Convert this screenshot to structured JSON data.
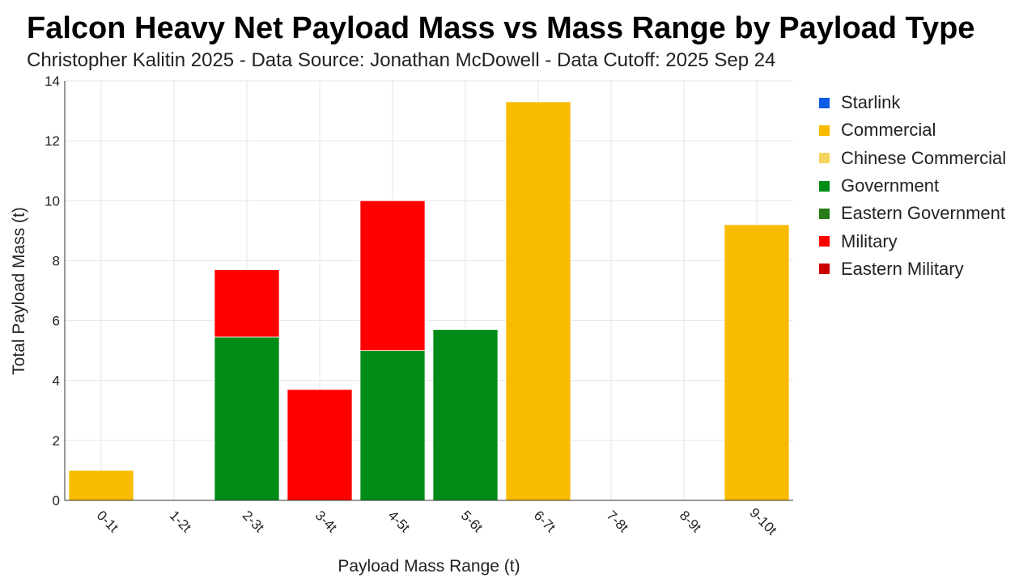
{
  "chart_data": {
    "type": "bar",
    "stacked": true,
    "title": "Falcon Heavy Net Payload Mass vs Mass Range by Payload Type",
    "subtitle": "Christopher Kalitin 2025 - Data Source: Jonathan McDowell - Data Cutoff: 2025 Sep 24",
    "xlabel": "Payload Mass Range (t)",
    "ylabel": "Total Payload Mass (t)",
    "ylim": [
      0,
      14
    ],
    "yticks": [
      0,
      2,
      4,
      6,
      8,
      10,
      12,
      14
    ],
    "grid": true,
    "legend_position": "right",
    "categories": [
      "0-1t",
      "1-2t",
      "2-3t",
      "3-4t",
      "4-5t",
      "5-6t",
      "6-7t",
      "7-8t",
      "8-9t",
      "9-10t"
    ],
    "series": [
      {
        "name": "Starlink",
        "color": "#0c5ce6",
        "values": [
          0,
          0,
          0,
          0,
          0,
          0,
          0,
          0,
          0,
          0
        ]
      },
      {
        "name": "Commercial",
        "color": "#f9bb00",
        "values": [
          1.0,
          0,
          0,
          0,
          0,
          0,
          13.3,
          0,
          0,
          9.2
        ]
      },
      {
        "name": "Chinese Commercial",
        "color": "#f6d45f",
        "values": [
          0,
          0,
          0,
          0,
          0,
          0,
          0,
          0,
          0,
          0
        ]
      },
      {
        "name": "Government",
        "color": "#008c17",
        "values": [
          0,
          0,
          5.45,
          0,
          5.0,
          5.7,
          0,
          0,
          0,
          0
        ]
      },
      {
        "name": "Eastern Government",
        "color": "#267a17",
        "values": [
          0,
          0,
          0,
          0,
          0,
          0,
          0,
          0,
          0,
          0
        ]
      },
      {
        "name": "Military",
        "color": "#ff0000",
        "values": [
          0,
          0,
          2.25,
          3.7,
          5.0,
          0,
          0,
          0,
          0,
          0
        ]
      },
      {
        "name": "Eastern Military",
        "color": "#cc0000",
        "values": [
          0,
          0,
          0,
          0,
          0,
          0,
          0,
          0,
          0,
          0
        ]
      }
    ]
  }
}
